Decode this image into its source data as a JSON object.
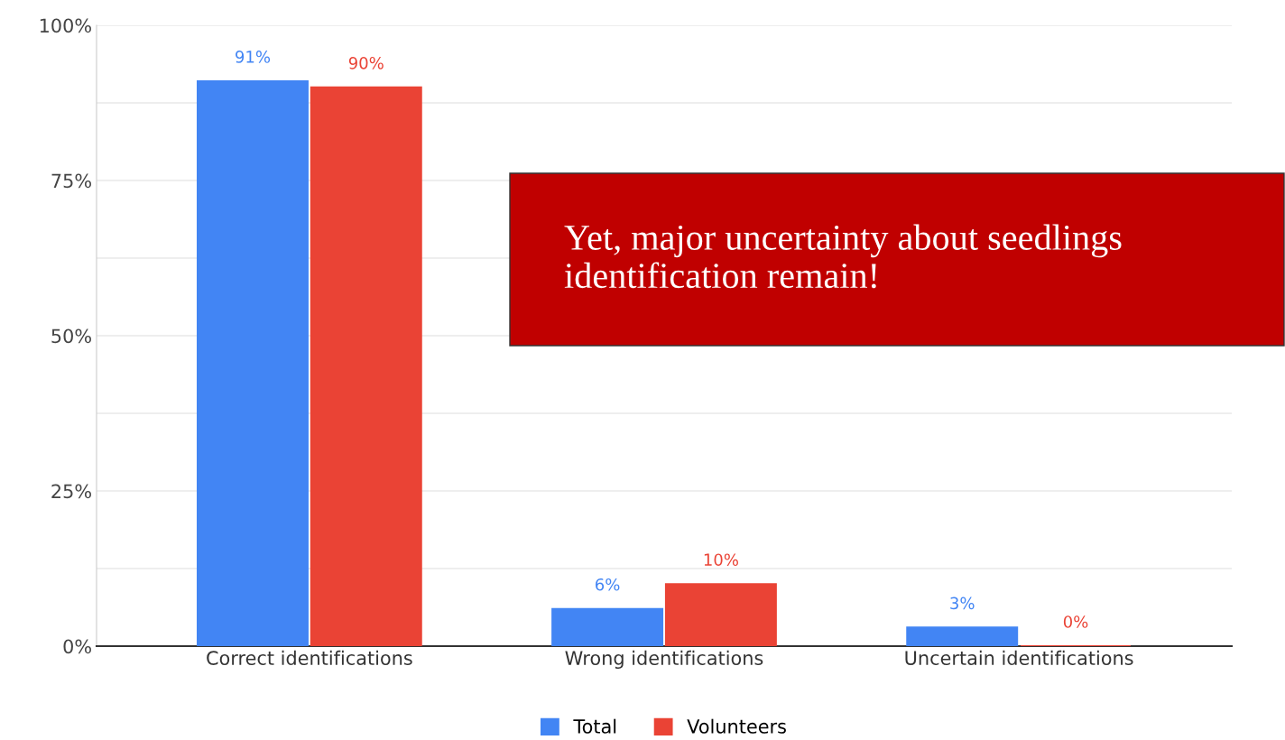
{
  "chart_data": {
    "type": "bar",
    "categories": [
      "Correct identifications",
      "Wrong identifications",
      "Uncertain identifications"
    ],
    "series": [
      {
        "name": "Total",
        "color": "#4285f4",
        "values": [
          91,
          6,
          3
        ],
        "value_labels": [
          "91%",
          "6%",
          "3%"
        ]
      },
      {
        "name": "Volunteers",
        "color": "#ea4335",
        "values": [
          90,
          10,
          0
        ],
        "value_labels": [
          "90%",
          "10%",
          "0%"
        ]
      }
    ],
    "ylim": [
      0,
      100
    ],
    "yticks": [
      {
        "value": 0,
        "label": "0%"
      },
      {
        "value": 12.5,
        "label": null
      },
      {
        "value": 25,
        "label": "25%"
      },
      {
        "value": 37.5,
        "label": null
      },
      {
        "value": 50,
        "label": "50%"
      },
      {
        "value": 62.5,
        "label": null
      },
      {
        "value": 75,
        "label": "75%"
      },
      {
        "value": 87.5,
        "label": null
      },
      {
        "value": 100,
        "label": "100%"
      }
    ],
    "grid": "y",
    "legend": "bottom",
    "annotations": [
      "Yet, major uncertainty about seedlings identification remain!"
    ]
  }
}
